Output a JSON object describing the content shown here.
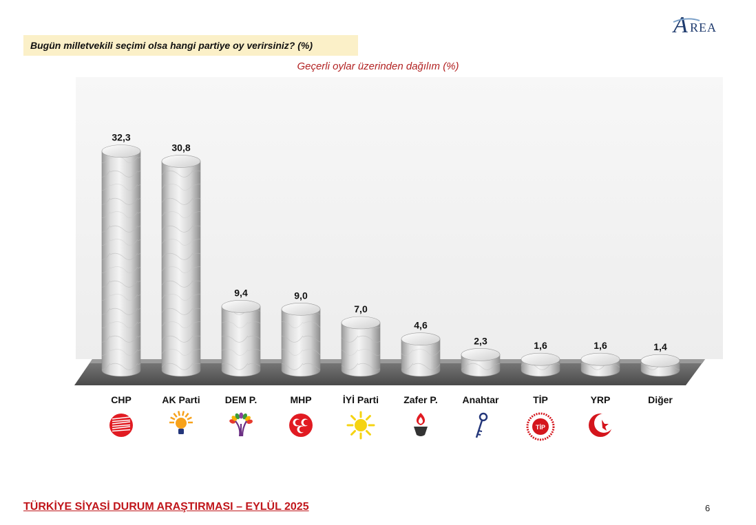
{
  "header": {
    "question": "Bugün milletvekili seçimi olsa hangi partiye oy verirsiniz? (%)",
    "subtitle": "Geçerli oylar üzerinden dağılım (%)",
    "logo_text": "REA",
    "logo_initial": "A"
  },
  "footer": {
    "title": "TÜRKİYE SİYASİ DURUM ARAŞTIRMASI – EYLÜL 2025",
    "page_number": "6"
  },
  "colors": {
    "title_red": "#c0161b",
    "question_bg": "#fbf0c8",
    "logo_blue": "#1f3b6e"
  },
  "chart_data": {
    "type": "bar",
    "title": "Bugün milletvekili seçimi olsa hangi partiye oy verirsiniz? (%)",
    "subtitle": "Geçerli oylar üzerinden dağılım (%)",
    "categories": [
      "CHP",
      "AK Parti",
      "DEM P.",
      "MHP",
      "İYİ Parti",
      "Zafer P.",
      "Anahtar",
      "TİP",
      "YRP",
      "Diğer"
    ],
    "values": [
      32.3,
      30.8,
      9.4,
      9.0,
      7.0,
      4.6,
      2.3,
      1.6,
      1.6,
      1.4
    ],
    "value_labels": [
      "32,3",
      "30,8",
      "9,4",
      "9,0",
      "7,0",
      "4,6",
      "2,3",
      "1,6",
      "1,6",
      "1,4"
    ],
    "icons": [
      "chp-logo-icon",
      "ak-parti-lamp-icon",
      "dem-tree-icon",
      "mhp-crescents-icon",
      "iyi-sun-icon",
      "zafer-torch-icon",
      "anahtar-key-icon",
      "tip-seal-icon",
      "yrp-crescent-icon",
      ""
    ],
    "ylim": [
      0,
      35
    ],
    "grid": false,
    "legend": "none"
  }
}
